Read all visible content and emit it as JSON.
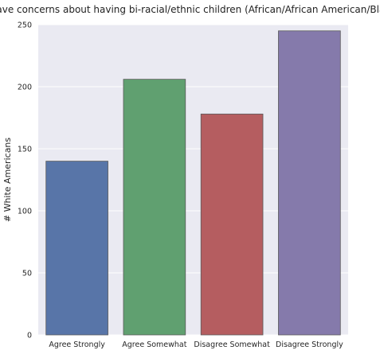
{
  "chart_data": {
    "type": "bar",
    "title": "I have concerns about having bi-racial/ethnic children (African/African American/Black)",
    "xlabel": "",
    "ylabel": "# White Americans",
    "categories": [
      "Agree Strongly",
      "Agree Somewhat",
      "Disagree Somewhat",
      "Disagree Strongly"
    ],
    "values": [
      140,
      206,
      178,
      245
    ],
    "ylim": [
      0,
      250
    ],
    "yticks": [
      0,
      50,
      100,
      150,
      200,
      250
    ],
    "grid": true,
    "colors": {
      "plot_background": "#EAEAF2",
      "grid": "#FFFFFF",
      "bars": [
        "#5875A8",
        "#60A070",
        "#B55D60",
        "#857AAB"
      ],
      "bar_edge": "#5A5A5A"
    }
  }
}
